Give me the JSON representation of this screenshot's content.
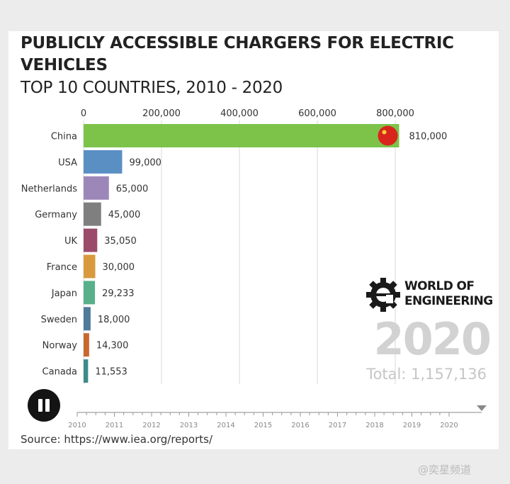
{
  "header": {
    "title": "PUBLICLY ACCESSIBLE CHARGERS FOR ELECTRIC VEHICLES",
    "subtitle": "TOP 10 COUNTRIES, 2010 - 2020"
  },
  "chart_data": {
    "type": "bar",
    "orientation": "horizontal",
    "categories": [
      "China",
      "USA",
      "Netherlands",
      "Germany",
      "UK",
      "France",
      "Japan",
      "Sweden",
      "Norway",
      "Canada"
    ],
    "values": [
      810000,
      99000,
      65000,
      45000,
      35050,
      30000,
      29233,
      18000,
      14300,
      11553
    ],
    "value_labels": [
      "810,000",
      "99,000",
      "65,000",
      "45,000",
      "35,050",
      "30,000",
      "29,233",
      "18,000",
      "14,300",
      "11,553"
    ],
    "x_ticks": [
      0,
      200000,
      400000,
      600000,
      800000
    ],
    "x_tick_labels": [
      "0",
      "200,000",
      "400,000",
      "600,000",
      "800,000"
    ],
    "xlim": [
      0,
      1000000
    ],
    "grid": true,
    "bar_colors": [
      "#7dc34a",
      "#5a8fc4",
      "#9d87b8",
      "#7f7f7f",
      "#9b4a6a",
      "#d99a3d",
      "#57b08a",
      "#4f7a9a",
      "#c9682e",
      "#3f8a8a"
    ],
    "year": "2020",
    "total_label": "Total: 1,157,136"
  },
  "brand": {
    "line1": "WORLD OF",
    "line2": "ENGINEERING",
    "icon": "gear-e-icon"
  },
  "player": {
    "state_icon": "pause-icon",
    "timeline_years": [
      "2010",
      "2011",
      "2012",
      "2013",
      "2014",
      "2015",
      "2016",
      "2017",
      "2018",
      "2019",
      "2020"
    ]
  },
  "footer": {
    "source": "Source: https://www.iea.org/reports/"
  },
  "watermark": "@奕星频道"
}
